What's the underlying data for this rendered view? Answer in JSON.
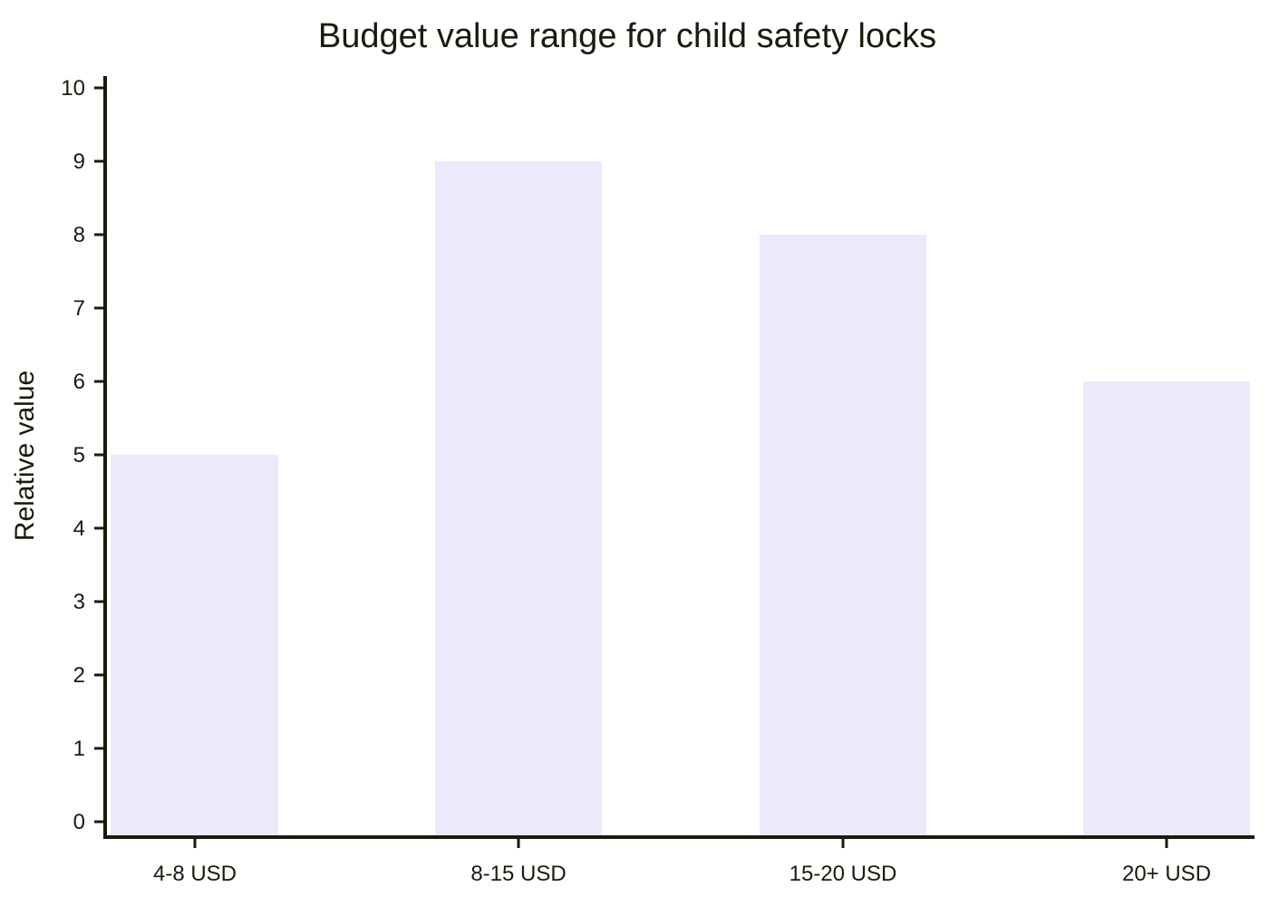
{
  "chart_data": {
    "type": "bar",
    "title": "Budget value range for child safety locks",
    "xlabel": "",
    "ylabel": "Relative value",
    "categories": [
      "4-8 USD",
      "8-15 USD",
      "15-20 USD",
      "20+ USD"
    ],
    "values": [
      5,
      9,
      8,
      6
    ],
    "ylim": [
      0,
      10
    ],
    "yticks": [
      0,
      1,
      2,
      3,
      4,
      5,
      6,
      7,
      8,
      9,
      10
    ],
    "grid": false,
    "bar_color": "#ebeafc",
    "axis_color": "#1a1a0e"
  }
}
